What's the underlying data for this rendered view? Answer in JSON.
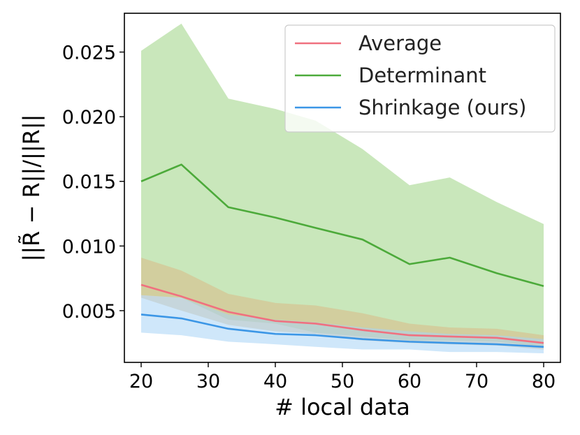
{
  "chart_data": {
    "type": "line",
    "title": "",
    "xlabel": "# local data",
    "ylabel": "||R̃ − R||/||R||",
    "xlim": [
      17.5,
      82.5
    ],
    "ylim": [
      0.001,
      0.028
    ],
    "xticks": [
      20,
      30,
      40,
      50,
      60,
      70,
      80
    ],
    "xtick_labels": [
      "20",
      "30",
      "40",
      "50",
      "60",
      "70",
      "80"
    ],
    "yticks": [
      0.005,
      0.01,
      0.015,
      0.02,
      0.025
    ],
    "ytick_labels": [
      "0.005",
      "0.010",
      "0.015",
      "0.020",
      "0.025"
    ],
    "legend_position": "top-right",
    "x": [
      20,
      26,
      33,
      40,
      46,
      53,
      60,
      66,
      73,
      80
    ],
    "series": [
      {
        "name": "Average",
        "color": "#f0707f",
        "fill_color": "#d9b987",
        "values": [
          0.007,
          0.0061,
          0.0049,
          0.0042,
          0.004,
          0.0035,
          0.0031,
          0.003,
          0.0029,
          0.0025
        ],
        "lower": [
          0.006,
          0.005,
          0.0039,
          0.0034,
          0.0032,
          0.0027,
          0.0025,
          0.0024,
          0.0023,
          0.002
        ],
        "upper": [
          0.0091,
          0.0081,
          0.0063,
          0.0056,
          0.0054,
          0.0048,
          0.004,
          0.0037,
          0.0036,
          0.0031
        ]
      },
      {
        "name": "Determinant",
        "color": "#4caa3a",
        "fill_color": "#a8d892",
        "values": [
          0.015,
          0.0163,
          0.013,
          0.0122,
          0.0114,
          0.0105,
          0.0086,
          0.0091,
          0.0079,
          0.0069
        ],
        "lower": [
          0.0062,
          0.006,
          0.0043,
          0.004,
          0.0033,
          0.003,
          0.0027,
          0.0027,
          0.0026,
          0.0022
        ],
        "upper": [
          0.0251,
          0.0272,
          0.0214,
          0.0206,
          0.0197,
          0.0175,
          0.0147,
          0.0153,
          0.0134,
          0.0117
        ]
      },
      {
        "name": "Shrinkage (ours)",
        "color": "#3b96e6",
        "fill_color": "#a8d3f5",
        "values": [
          0.0047,
          0.0044,
          0.0036,
          0.0032,
          0.0031,
          0.0028,
          0.0026,
          0.0025,
          0.0024,
          0.0022
        ],
        "lower": [
          0.0033,
          0.0031,
          0.0026,
          0.0024,
          0.0022,
          0.002,
          0.002,
          0.0018,
          0.0018,
          0.0017
        ],
        "upper": [
          0.0062,
          0.006,
          0.0047,
          0.0043,
          0.0041,
          0.0037,
          0.0034,
          0.0032,
          0.0031,
          0.0028
        ]
      }
    ]
  }
}
